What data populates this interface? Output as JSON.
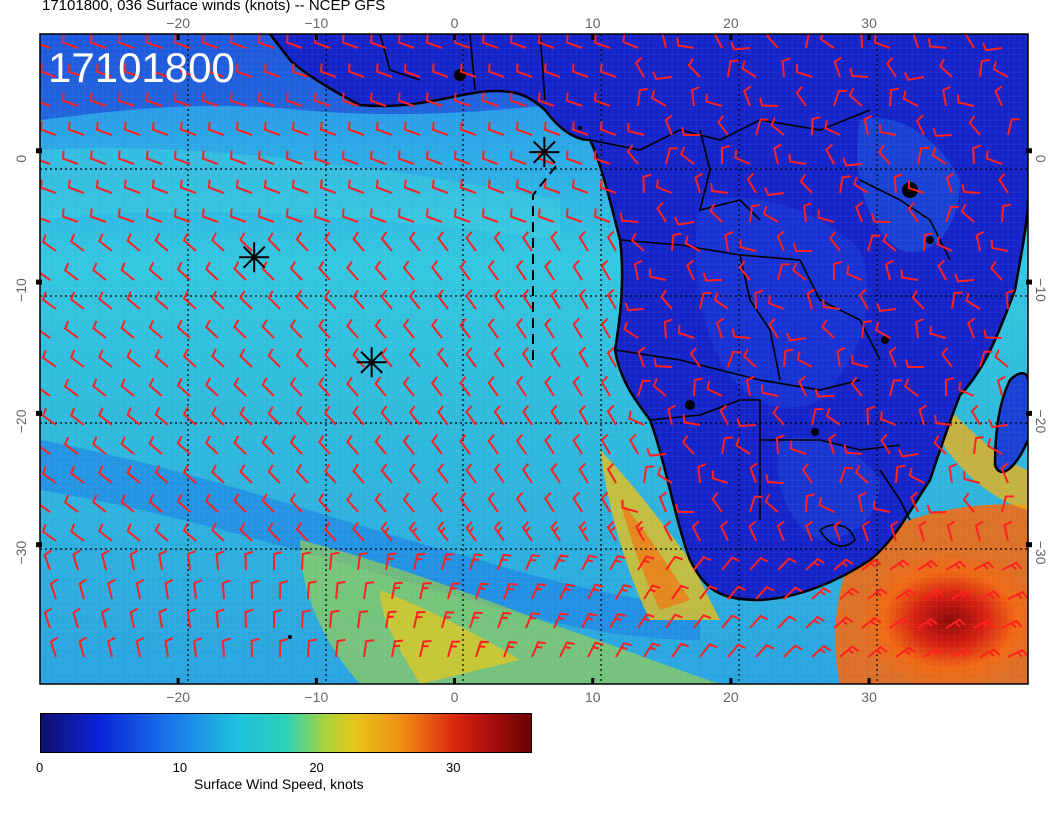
{
  "title": "17101800, 036 Surface winds (knots) -- NCEP GFS",
  "date_label": "17101800",
  "longitude_ticks": [
    "−20",
    "−10",
    "0",
    "10",
    "20",
    "30"
  ],
  "latitude_ticks": [
    "0",
    "−10",
    "−20",
    "−30"
  ],
  "colorbar": {
    "label": "Surface Wind Speed, knots",
    "ticks": [
      "0",
      "10",
      "20",
      "30"
    ],
    "min": 0,
    "max": 36
  },
  "colors": {
    "barbs": "#ff2020",
    "low_wind": "#0a1fb8",
    "mid_wind": "#22c8d8",
    "high_wind": "#c81010"
  },
  "markers": [
    {
      "name": "asterisk",
      "lon": -14.5,
      "lat": -7.5
    },
    {
      "name": "asterisk",
      "lon": -6,
      "lat": -15.5
    },
    {
      "name": "asterisk",
      "lon": 6.5,
      "lat": 0.5
    }
  ],
  "map_extent": {
    "lon_min": -30,
    "lon_max": 41.5,
    "lat_min": -40,
    "lat_max": 9.5
  }
}
